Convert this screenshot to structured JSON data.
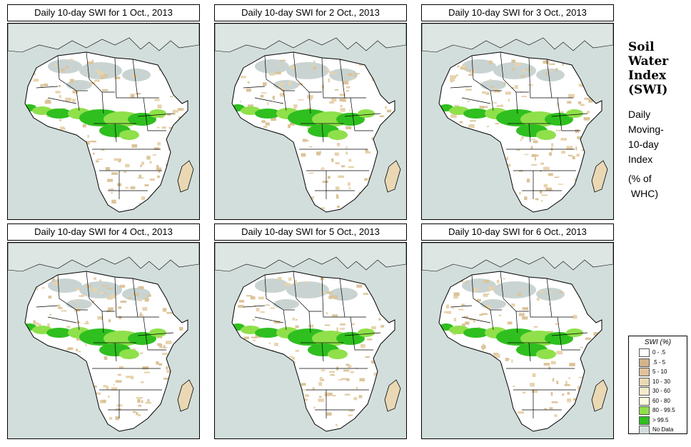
{
  "panels": [
    {
      "title": "Daily 10-day SWI for  1 Oct., 2013"
    },
    {
      "title": "Daily 10-day SWI for  2 Oct., 2013"
    },
    {
      "title": "Daily 10-day SWI for  3 Oct., 2013"
    },
    {
      "title": "Daily 10-day SWI for  4 Oct., 2013"
    },
    {
      "title": "Daily 10-day SWI for  5 Oct., 2013"
    },
    {
      "title": "Daily 10-day SWI for  6 Oct., 2013"
    }
  ],
  "side": {
    "title_lines": [
      "Soil",
      "Water",
      "Index",
      "(SWI)"
    ],
    "sub_lines": [
      "Daily",
      "Moving-",
      "10-day",
      "Index"
    ],
    "unit_lines": [
      "(% of",
      " WHC)"
    ]
  },
  "legend": {
    "title": "SWI (%)",
    "items": [
      {
        "label": "0 - .5",
        "color": "#ffffff"
      },
      {
        "label": ".5 - 5",
        "color": "#d2b48c"
      },
      {
        "label": "5 - 10",
        "color": "#e0c29c"
      },
      {
        "label": "10 - 30",
        "color": "#ead8b4"
      },
      {
        "label": "30 - 60",
        "color": "#f2ebcd"
      },
      {
        "label": "60 - 80",
        "color": "#fbfbe0"
      },
      {
        "label": "80 - 99.5",
        "color": "#8fe04a"
      },
      {
        "label": "> 99.5",
        "color": "#2fbf1f"
      },
      {
        "label": "No Data",
        "color": "#d2dedb"
      }
    ]
  },
  "colors": {
    "ocean": "#d2dedb",
    "land": "#ffffff",
    "dry": "#dcc49a",
    "wet": "#8fe04a",
    "saturated": "#2fbf1f",
    "nodata": "#c9d4d2"
  }
}
